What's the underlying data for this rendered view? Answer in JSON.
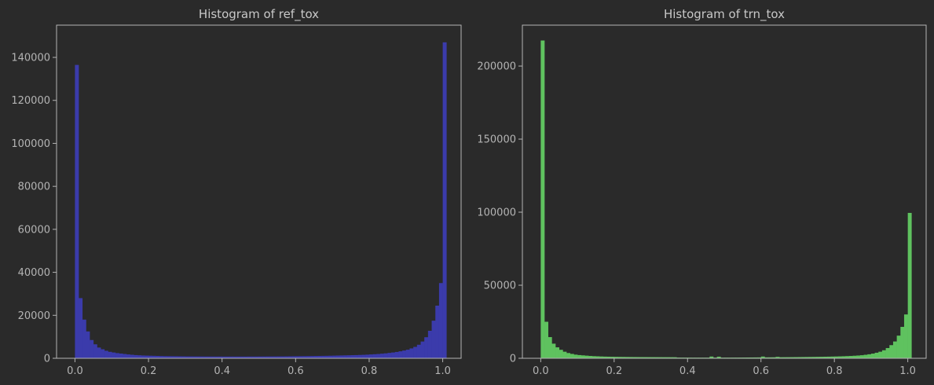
{
  "chart_data": [
    {
      "type": "bar",
      "title": "Histogram of ref_tox",
      "xlabel": "",
      "ylabel": "",
      "bar_color": "#3b3bab",
      "xlim": [
        -0.05,
        1.05
      ],
      "ylim": [
        0,
        155000
      ],
      "xticks": [
        0.0,
        0.2,
        0.4,
        0.6,
        0.8,
        1.0
      ],
      "xtick_labels": [
        "0.0",
        "0.2",
        "0.4",
        "0.6",
        "0.8",
        "1.0"
      ],
      "yticks": [
        0,
        20000,
        40000,
        60000,
        80000,
        100000,
        120000,
        140000
      ],
      "ytick_labels": [
        "0",
        "20000",
        "40000",
        "60000",
        "80000",
        "100000",
        "120000",
        "140000"
      ],
      "bin_start": 0.0,
      "bin_width": 0.01,
      "values": [
        136500,
        28000,
        18000,
        12500,
        8500,
        6500,
        5000,
        4200,
        3500,
        3000,
        2700,
        2400,
        2200,
        2000,
        1800,
        1650,
        1500,
        1400,
        1300,
        1250,
        1200,
        1150,
        1100,
        1050,
        1000,
        980,
        960,
        940,
        920,
        900,
        880,
        870,
        860,
        850,
        840,
        830,
        820,
        820,
        810,
        810,
        800,
        800,
        800,
        800,
        800,
        800,
        800,
        810,
        810,
        820,
        830,
        840,
        850,
        860,
        870,
        880,
        890,
        900,
        920,
        940,
        960,
        980,
        1000,
        1020,
        1050,
        1080,
        1100,
        1130,
        1160,
        1200,
        1240,
        1280,
        1320,
        1360,
        1400,
        1450,
        1500,
        1560,
        1620,
        1700,
        1800,
        1900,
        2000,
        2150,
        2300,
        2500,
        2700,
        2950,
        3250,
        3600,
        4000,
        4600,
        5300,
        6300,
        7800,
        9800,
        12800,
        17500,
        24500,
        35000,
        147000
      ]
    },
    {
      "type": "bar",
      "title": "Histogram of trn_tox",
      "xlabel": "",
      "ylabel": "",
      "bar_color": "#5fc25f",
      "xlim": [
        -0.05,
        1.05
      ],
      "ylim": [
        0,
        228000
      ],
      "xticks": [
        0.0,
        0.2,
        0.4,
        0.6,
        0.8,
        1.0
      ],
      "xtick_labels": [
        "0.0",
        "0.2",
        "0.4",
        "0.6",
        "0.8",
        "1.0"
      ],
      "yticks": [
        0,
        50000,
        100000,
        150000,
        200000
      ],
      "ytick_labels": [
        "0",
        "50000",
        "100000",
        "150000",
        "200000"
      ],
      "bin_start": 0.0,
      "bin_width": 0.01,
      "values": [
        217500,
        25000,
        14500,
        10000,
        7500,
        5800,
        4500,
        3600,
        3000,
        2500,
        2200,
        2000,
        1800,
        1600,
        1450,
        1350,
        1250,
        1150,
        1100,
        1050,
        1000,
        960,
        930,
        900,
        870,
        850,
        830,
        810,
        800,
        790,
        780,
        770,
        760,
        750,
        740,
        730,
        720,
        500,
        480,
        470,
        460,
        450,
        450,
        440,
        440,
        440,
        1200,
        440,
        1100,
        450,
        460,
        470,
        480,
        490,
        500,
        520,
        540,
        560,
        580,
        600,
        1200,
        640,
        660,
        680,
        1000,
        720,
        740,
        760,
        780,
        800,
        830,
        860,
        890,
        920,
        950,
        990,
        1030,
        1080,
        1130,
        1190,
        1250,
        1320,
        1400,
        1500,
        1600,
        1750,
        1900,
        2100,
        2400,
        2750,
        3200,
        3800,
        4500,
        5500,
        7000,
        9000,
        11500,
        15500,
        21500,
        30000,
        99500
      ]
    }
  ]
}
